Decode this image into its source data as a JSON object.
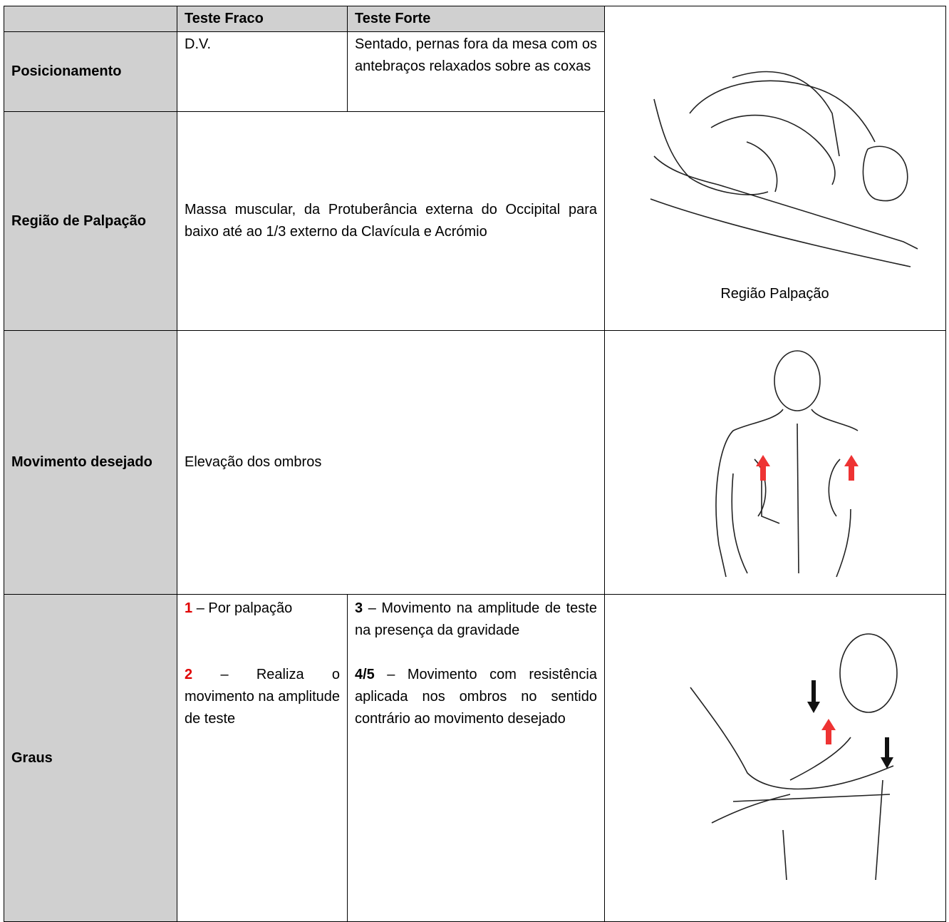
{
  "table": {
    "header": [
      "Teste Fraco",
      "Teste Forte"
    ],
    "positioning": {
      "label": "Posicionamento",
      "weak": "D.V.",
      "strong": "Sentado, pernas fora da mesa com os antebraços relaxados sobre as coxas"
    },
    "palpation": {
      "label": "Região de Palpação",
      "text": "Massa muscular, da Protuberância externa do Occipital para baixo até ao 1/3 externo da Clavícula e Acrómio",
      "image_caption": "Região Palpação"
    },
    "movement": {
      "label": "Movimento desejado",
      "text": "Elevação dos ombros"
    },
    "grades": {
      "label": "Graus",
      "weak": [
        {
          "grade": "1",
          "text": "– Por palpação"
        },
        {
          "grade": "2",
          "text": "– Realiza o movimento na amplitude de teste"
        }
      ],
      "strong": [
        {
          "grade": "3",
          "text": "– Movimento na amplitude de teste na presença da gravidade"
        },
        {
          "grade": "4/5",
          "text": "– Movimento com resistência aplicada nos ombros no sentido contrário ao movimento desejado"
        }
      ]
    }
  }
}
